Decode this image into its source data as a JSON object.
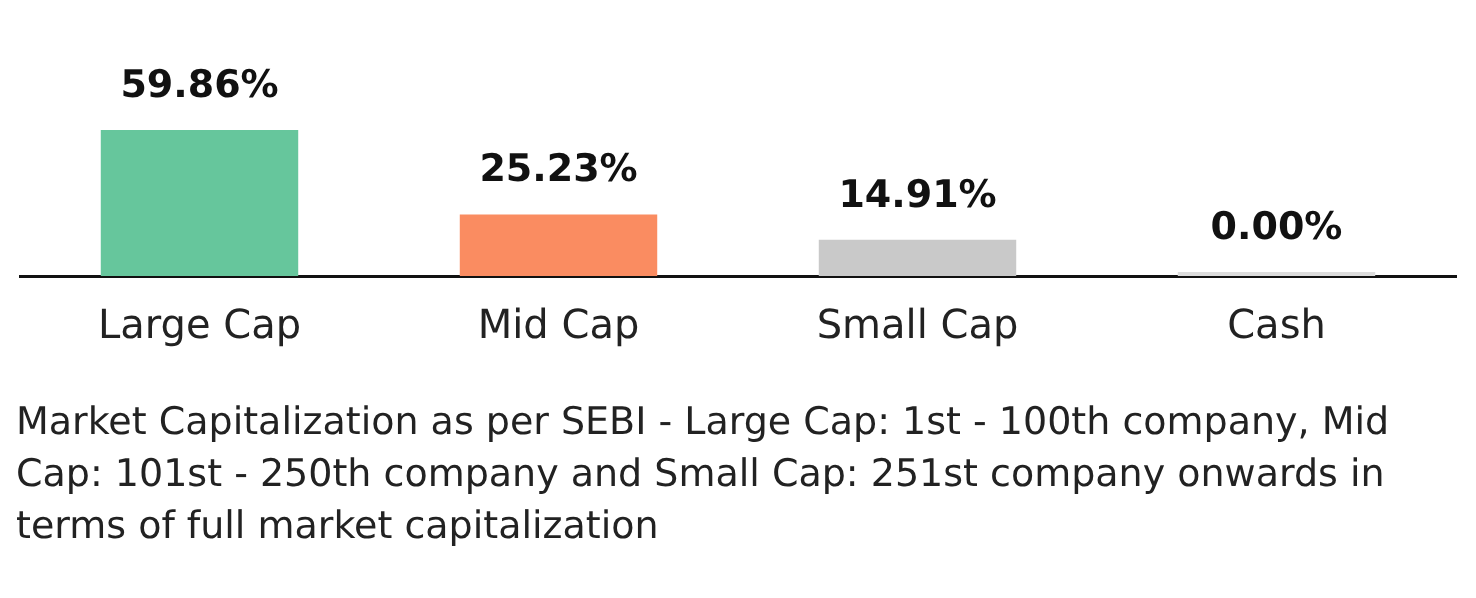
{
  "chart_data": {
    "type": "bar",
    "categories": [
      "Large Cap",
      "Mid Cap",
      "Small Cap",
      "Cash"
    ],
    "values": [
      59.86,
      25.23,
      14.91,
      0.0
    ],
    "value_labels": [
      "59.86%",
      "25.23%",
      "14.91%",
      "0.00%"
    ],
    "colors": [
      "#66c69c",
      "#fa8c61",
      "#c9c9c9",
      "#dcdcdc"
    ],
    "grid": false,
    "legend": false,
    "annotations": [
      "Market Capitalization as per SEBI - Large Cap: 1st - 100th company, Mid Cap: 101st - 250th company and Small Cap: 251st company onwards in terms of full market capitalization"
    ]
  }
}
